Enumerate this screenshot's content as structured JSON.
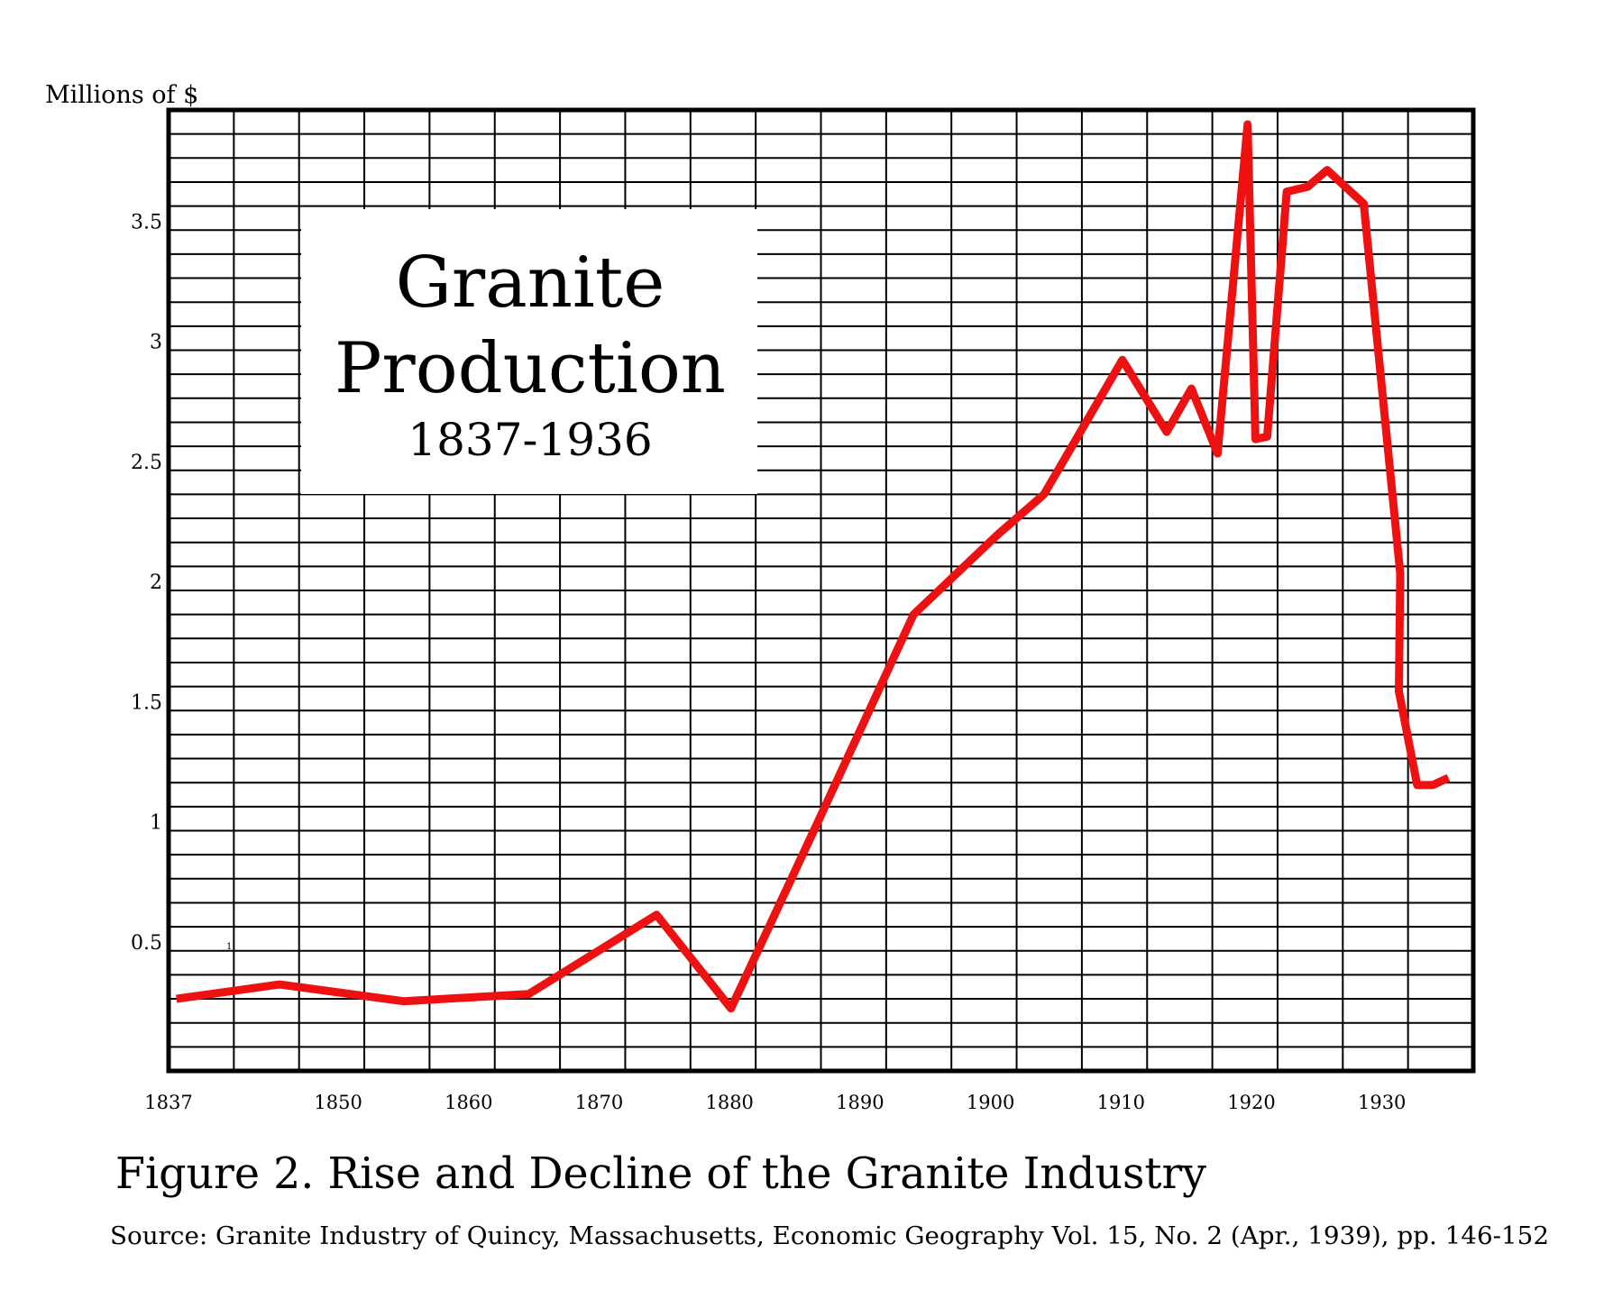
{
  "chart_data": {
    "type": "line",
    "title": "Granite Production",
    "subtitle": "1837-1936",
    "ylabel": "Millions of $",
    "xlabel": "",
    "xlim": [
      1837,
      1937
    ],
    "ylim": [
      0,
      4.0
    ],
    "grid": true,
    "grid_x_step": 5,
    "grid_y_step": 0.1,
    "x_ticks": [
      1837,
      1850,
      1860,
      1870,
      1880,
      1890,
      1900,
      1910,
      1920,
      1930
    ],
    "x_tick_labels": [
      "1837",
      "1850",
      "1860",
      "1870",
      "1880",
      "1890",
      "1900",
      "1910",
      "1920",
      "1930"
    ],
    "y_ticks": [
      0.5,
      1,
      1.5,
      2,
      2.5,
      3,
      3.5
    ],
    "y_tick_labels": [
      "0.5",
      "1",
      "1.5",
      "2",
      "2.5",
      "3",
      "3.5"
    ],
    "stray_mark": "1",
    "series": [
      {
        "name": "Granite production",
        "color": "#ee1111",
        "x": [
          1837.6,
          1845.5,
          1855.0,
          1864.6,
          1874.4,
          1880.1,
          1886.8,
          1894.1,
          1900.5,
          1904.1,
          1910.1,
          1913.5,
          1915.4,
          1917.4,
          1919.7,
          1920.3,
          1921.2,
          1922.7,
          1924.3,
          1925.8,
          1928.6,
          1931.4,
          1931.3,
          1932.7,
          1933.9,
          1935.1
        ],
        "y": [
          0.3,
          0.36,
          0.29,
          0.32,
          0.65,
          0.26,
          1.04,
          1.9,
          2.23,
          2.4,
          2.96,
          2.66,
          2.84,
          2.57,
          3.94,
          2.63,
          2.64,
          3.66,
          3.68,
          3.75,
          3.61,
          2.07,
          1.58,
          1.19,
          1.19,
          1.22
        ]
      }
    ]
  },
  "caption": {
    "figure": "Figure 2. Rise and Decline of the Granite Industry",
    "source": "Source: Granite Industry of Quincy, Massachusetts, Economic Geography Vol. 15, No. 2 (Apr., 1939), pp. 146-152"
  }
}
